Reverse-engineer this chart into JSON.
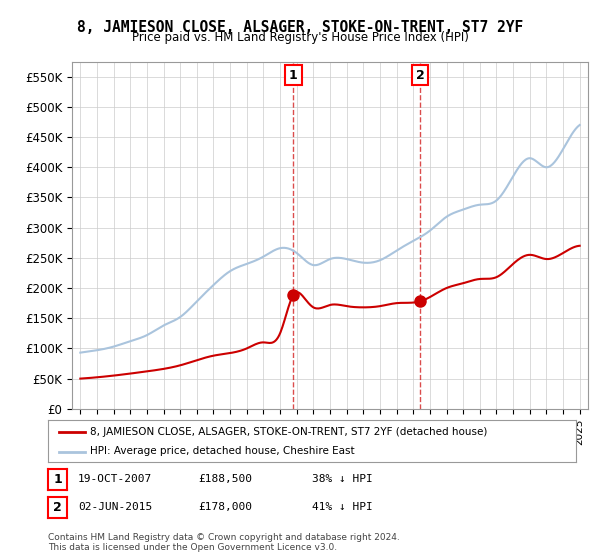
{
  "title": "8, JAMIESON CLOSE, ALSAGER, STOKE-ON-TRENT, ST7 2YF",
  "subtitle": "Price paid vs. HM Land Registry's House Price Index (HPI)",
  "xlabel": "",
  "ylabel": "",
  "ylim": [
    0,
    575000
  ],
  "yticks": [
    0,
    50000,
    100000,
    150000,
    200000,
    250000,
    300000,
    350000,
    400000,
    450000,
    500000,
    550000
  ],
  "ytick_labels": [
    "£0",
    "£50K",
    "£100K",
    "£150K",
    "£200K",
    "£250K",
    "£300K",
    "£350K",
    "£400K",
    "£450K",
    "£500K",
    "£550K"
  ],
  "xlim_start": 1994.5,
  "xlim_end": 2025.5,
  "xtick_years": [
    1995,
    1996,
    1997,
    1998,
    1999,
    2000,
    2001,
    2002,
    2003,
    2004,
    2005,
    2006,
    2007,
    2008,
    2009,
    2010,
    2011,
    2012,
    2013,
    2014,
    2015,
    2016,
    2017,
    2018,
    2019,
    2020,
    2021,
    2022,
    2023,
    2024,
    2025
  ],
  "hpi_color": "#aac4dd",
  "hpi_linewidth": 1.5,
  "price_color": "#cc0000",
  "price_linewidth": 1.5,
  "marker_color": "#cc0000",
  "marker_size": 8,
  "sale1_x": 2007.8,
  "sale1_y": 188500,
  "sale2_x": 2015.42,
  "sale2_y": 178000,
  "vline_color": "#cc0000",
  "vline_style": "--",
  "vline_alpha": 0.7,
  "legend_label_red": "8, JAMIESON CLOSE, ALSAGER, STOKE-ON-TRENT, ST7 2YF (detached house)",
  "legend_label_blue": "HPI: Average price, detached house, Cheshire East",
  "annotation1_label": "1",
  "annotation2_label": "2",
  "footer1": "Contains HM Land Registry data © Crown copyright and database right 2024.",
  "footer2": "This data is licensed under the Open Government Licence v3.0.",
  "table_row1": [
    "1",
    "19-OCT-2007",
    "£188,500",
    "38% ↓ HPI"
  ],
  "table_row2": [
    "2",
    "02-JUN-2015",
    "£178,000",
    "41% ↓ HPI"
  ],
  "background_color": "#ffffff",
  "grid_color": "#cccccc"
}
